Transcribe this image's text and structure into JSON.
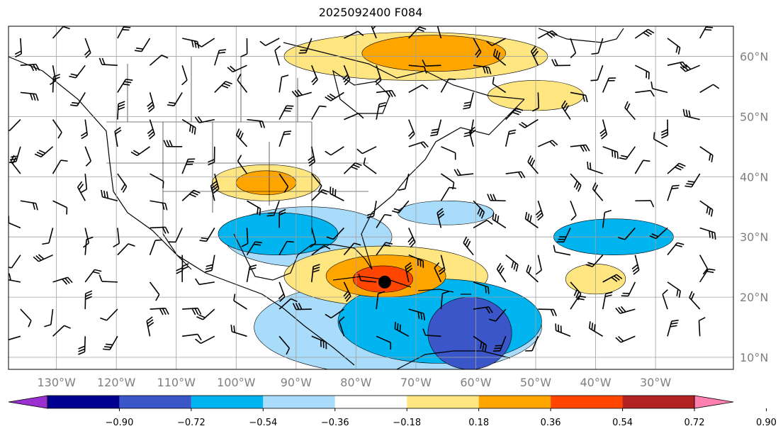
{
  "title": "2025092400 F084",
  "map": {
    "lon_range": [
      -138,
      -17
    ],
    "lat_range": [
      8,
      65
    ],
    "lat_ticks": [
      {
        "value": 10,
        "label": "10°N"
      },
      {
        "value": 20,
        "label": "20°N"
      },
      {
        "value": 30,
        "label": "30°N"
      },
      {
        "value": 40,
        "label": "40°N"
      },
      {
        "value": 50,
        "label": "50°N"
      },
      {
        "value": 60,
        "label": "60°N"
      }
    ],
    "lon_ticks": [
      {
        "value": -130,
        "label": "130°W"
      },
      {
        "value": -120,
        "label": "120°W"
      },
      {
        "value": -110,
        "label": "110°W"
      },
      {
        "value": -100,
        "label": "100°W"
      },
      {
        "value": -90,
        "label": "90°W"
      },
      {
        "value": -80,
        "label": "80°W"
      },
      {
        "value": -70,
        "label": "70°W"
      },
      {
        "value": -60,
        "label": "60°W"
      },
      {
        "value": -50,
        "label": "50°W"
      },
      {
        "value": -40,
        "label": "40°W"
      },
      {
        "value": -30,
        "label": "30°W"
      }
    ],
    "storm_marker": {
      "lon": -75.2,
      "lat": 22.5
    },
    "colors": {
      "land_line": "#000000",
      "grid": "#a0a0a0",
      "storm": "#000000"
    }
  },
  "colorbar": {
    "levels": [
      "−0.90",
      "−0.72",
      "−0.54",
      "−0.36",
      "−0.18",
      "0.18",
      "0.36",
      "0.54",
      "0.72",
      "0.90"
    ],
    "colors": [
      "#9b30d0",
      "#000090",
      "#3a56c8",
      "#00b4f0",
      "#a8dcfa",
      "#ffffff",
      "#ffe680",
      "#ffa500",
      "#ff4500",
      "#b22222",
      "#ff80b0"
    ]
  },
  "anomaly_regions": [
    {
      "lon": -61,
      "lat": 14,
      "rx": 7,
      "ry": 6,
      "level": "dark"
    },
    {
      "lon": -66,
      "lat": 16,
      "rx": 17,
      "ry": 7,
      "level": "mid"
    },
    {
      "lon": -73,
      "lat": 15,
      "rx": 24,
      "ry": 8,
      "level": "light"
    },
    {
      "lon": -93,
      "lat": 30.5,
      "rx": 10,
      "ry": 3.5,
      "level": "mid"
    },
    {
      "lon": -88,
      "lat": 30,
      "rx": 14,
      "ry": 5,
      "level": "light"
    },
    {
      "lon": -37,
      "lat": 30,
      "rx": 10,
      "ry": 3,
      "level": "mid"
    },
    {
      "lon": -65,
      "lat": 34,
      "rx": 8,
      "ry": 2,
      "level": "light"
    },
    {
      "lon": -75,
      "lat": 23.5,
      "rx": 17,
      "ry": 5,
      "level": "pos1"
    },
    {
      "lon": -75,
      "lat": 23.5,
      "rx": 10,
      "ry": 3.5,
      "level": "pos2"
    },
    {
      "lon": -75.5,
      "lat": 23,
      "rx": 5,
      "ry": 2.2,
      "level": "pos3"
    },
    {
      "lon": -95,
      "lat": 39,
      "rx": 9,
      "ry": 3,
      "level": "pos1"
    },
    {
      "lon": -95,
      "lat": 39,
      "rx": 5,
      "ry": 2,
      "level": "pos2"
    },
    {
      "lon": -70,
      "lat": 60,
      "rx": 22,
      "ry": 4,
      "level": "pos1"
    },
    {
      "lon": -67,
      "lat": 60.5,
      "rx": 12,
      "ry": 3,
      "level": "pos2"
    },
    {
      "lon": -50,
      "lat": 53.5,
      "rx": 8,
      "ry": 2.5,
      "level": "pos1"
    },
    {
      "lon": -40,
      "lat": 23,
      "rx": 5,
      "ry": 2.5,
      "level": "pos1"
    }
  ]
}
